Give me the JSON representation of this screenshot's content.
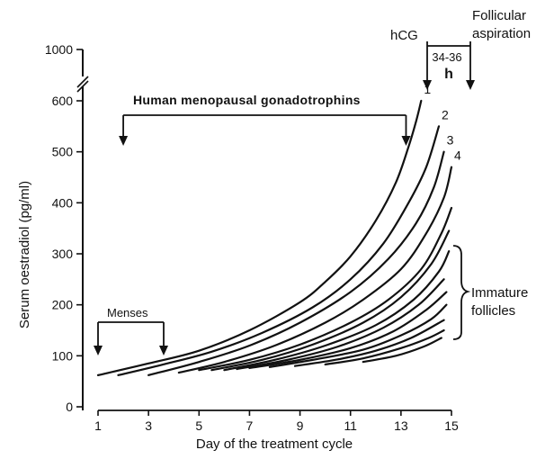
{
  "chart_data": {
    "type": "line",
    "title": "",
    "xlabel": "Day of the treatment cycle",
    "ylabel": "Serum oestradiol (pg/ml)",
    "xlim": [
      1,
      15
    ],
    "ylim": [
      0,
      600
    ],
    "y_break": {
      "from": 600,
      "to": 1000
    },
    "x_ticks": [
      1,
      3,
      5,
      7,
      9,
      11,
      13,
      15
    ],
    "y_ticks": [
      0,
      100,
      200,
      300,
      400,
      500,
      600,
      1000
    ],
    "grid": false,
    "series": [
      {
        "name": "1",
        "label": "1",
        "points": [
          [
            1,
            62
          ],
          [
            3,
            85
          ],
          [
            5,
            110
          ],
          [
            7,
            150
          ],
          [
            9,
            205
          ],
          [
            10,
            245
          ],
          [
            11,
            295
          ],
          [
            12,
            365
          ],
          [
            12.8,
            440
          ],
          [
            13.3,
            510
          ],
          [
            13.6,
            560
          ],
          [
            13.8,
            600
          ]
        ]
      },
      {
        "name": "2",
        "label": "2",
        "points": [
          [
            1.8,
            62
          ],
          [
            3.5,
            82
          ],
          [
            5.5,
            108
          ],
          [
            7.5,
            145
          ],
          [
            9.5,
            195
          ],
          [
            11,
            250
          ],
          [
            12.3,
            320
          ],
          [
            13.3,
            400
          ],
          [
            14,
            470
          ],
          [
            14.5,
            550
          ]
        ]
      },
      {
        "name": "3",
        "label": "3",
        "points": [
          [
            3,
            62
          ],
          [
            5,
            88
          ],
          [
            7,
            120
          ],
          [
            9,
            165
          ],
          [
            11,
            225
          ],
          [
            12.5,
            290
          ],
          [
            13.6,
            360
          ],
          [
            14.3,
            430
          ],
          [
            14.7,
            500
          ]
        ]
      },
      {
        "name": "4",
        "label": "4",
        "points": [
          [
            4.2,
            67
          ],
          [
            6,
            88
          ],
          [
            8,
            120
          ],
          [
            10,
            165
          ],
          [
            11.5,
            210
          ],
          [
            13,
            270
          ],
          [
            14,
            340
          ],
          [
            14.7,
            410
          ],
          [
            15,
            470
          ]
        ]
      },
      {
        "name": "immature-1",
        "points": [
          [
            5,
            72
          ],
          [
            7,
            92
          ],
          [
            9,
            122
          ],
          [
            11,
            165
          ],
          [
            12.5,
            210
          ],
          [
            13.8,
            270
          ],
          [
            14.6,
            340
          ],
          [
            15,
            390
          ]
        ]
      },
      {
        "name": "immature-2",
        "points": [
          [
            5.5,
            72
          ],
          [
            7.5,
            92
          ],
          [
            9.5,
            122
          ],
          [
            11.5,
            165
          ],
          [
            13,
            215
          ],
          [
            14.2,
            280
          ],
          [
            14.9,
            345
          ]
        ]
      },
      {
        "name": "immature-3",
        "points": [
          [
            6,
            72
          ],
          [
            8,
            92
          ],
          [
            10,
            120
          ],
          [
            12,
            160
          ],
          [
            13.5,
            210
          ],
          [
            14.5,
            265
          ],
          [
            14.9,
            305
          ]
        ]
      },
      {
        "name": "immature-4",
        "points": [
          [
            6.5,
            74
          ],
          [
            8.5,
            92
          ],
          [
            10.5,
            118
          ],
          [
            12.3,
            155
          ],
          [
            13.7,
            200
          ],
          [
            14.7,
            250
          ]
        ]
      },
      {
        "name": "immature-5",
        "points": [
          [
            7,
            76
          ],
          [
            9,
            92
          ],
          [
            11,
            115
          ],
          [
            12.7,
            148
          ],
          [
            14,
            190
          ],
          [
            14.8,
            225
          ]
        ]
      },
      {
        "name": "immature-6",
        "points": [
          [
            7.8,
            78
          ],
          [
            9.5,
            92
          ],
          [
            11.5,
            112
          ],
          [
            13,
            140
          ],
          [
            14.2,
            172
          ],
          [
            14.8,
            200
          ]
        ]
      },
      {
        "name": "immature-7",
        "points": [
          [
            8.8,
            80
          ],
          [
            10.5,
            93
          ],
          [
            12,
            110
          ],
          [
            13.4,
            135
          ],
          [
            14.7,
            170
          ]
        ]
      },
      {
        "name": "immature-8",
        "points": [
          [
            10,
            83
          ],
          [
            11.5,
            95
          ],
          [
            13,
            115
          ],
          [
            14.1,
            135
          ],
          [
            14.7,
            150
          ]
        ]
      },
      {
        "name": "immature-9",
        "points": [
          [
            11.5,
            88
          ],
          [
            12.8,
            100
          ],
          [
            13.9,
            118
          ],
          [
            14.6,
            135
          ]
        ]
      }
    ],
    "annotations": {
      "hmg": {
        "text": "Human menopausal gonadotrophins",
        "from_day": 2,
        "to_day": 13.2
      },
      "menses": {
        "text": "Menses",
        "from_day": 1,
        "to_day": 3.6
      },
      "hcg": {
        "text": "hCG",
        "day": 13.9
      },
      "aspiration": {
        "line1": "Follicular",
        "line2": "aspiration",
        "day": 15.5
      },
      "interval": {
        "line1": "34-36",
        "line2": "h"
      },
      "immature": {
        "line1": "Immature",
        "line2": "follicles"
      }
    }
  }
}
